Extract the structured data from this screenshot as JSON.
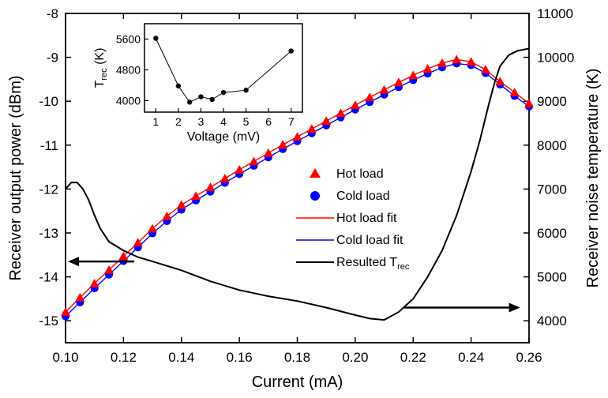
{
  "chart_data": [
    {
      "type": "line",
      "xlabel": "Current (mA)",
      "ylabel": "Receiver output power (dBm)",
      "y2label": "Receiver noise temperature (K)",
      "xlim": [
        0.1,
        0.26
      ],
      "ylim": [
        -15.5,
        -8
      ],
      "y2lim": [
        3500,
        11000
      ],
      "xticks": [
        "0.10",
        "0.12",
        "0.14",
        "0.16",
        "0.18",
        "0.20",
        "0.22",
        "0.24",
        "0.26"
      ],
      "yticks": [
        "-15",
        "-14",
        "-13",
        "-12",
        "-11",
        "-10",
        "-9",
        "-8"
      ],
      "y2ticks": [
        "4000",
        "5000",
        "6000",
        "7000",
        "8000",
        "9000",
        "10000",
        "11000"
      ],
      "legend_position": "center-right",
      "series": [
        {
          "name": "Hot load",
          "marker": "triangle",
          "color": "#ff0000",
          "axis": "left",
          "x": [
            0.1,
            0.105,
            0.11,
            0.115,
            0.12,
            0.125,
            0.13,
            0.135,
            0.14,
            0.145,
            0.15,
            0.155,
            0.16,
            0.165,
            0.17,
            0.175,
            0.18,
            0.185,
            0.19,
            0.195,
            0.2,
            0.205,
            0.21,
            0.215,
            0.22,
            0.225,
            0.23,
            0.235,
            0.24,
            0.245,
            0.25,
            0.255,
            0.26
          ],
          "y": [
            -14.8,
            -14.47,
            -14.15,
            -13.84,
            -13.53,
            -13.22,
            -12.9,
            -12.62,
            -12.36,
            -12.16,
            -11.96,
            -11.76,
            -11.56,
            -11.37,
            -11.18,
            -10.99,
            -10.81,
            -10.63,
            -10.45,
            -10.27,
            -10.09,
            -9.91,
            -9.74,
            -9.57,
            -9.41,
            -9.26,
            -9.13,
            -9.05,
            -9.1,
            -9.28,
            -9.55,
            -9.8,
            -10.05
          ]
        },
        {
          "name": "Cold load",
          "marker": "circle",
          "color": "#0000ff",
          "axis": "left",
          "x": [
            0.1,
            0.105,
            0.11,
            0.115,
            0.12,
            0.125,
            0.13,
            0.135,
            0.14,
            0.145,
            0.15,
            0.155,
            0.16,
            0.165,
            0.17,
            0.175,
            0.18,
            0.185,
            0.19,
            0.195,
            0.2,
            0.205,
            0.21,
            0.215,
            0.22,
            0.225,
            0.23,
            0.235,
            0.24,
            0.245,
            0.25,
            0.255,
            0.26
          ],
          "y": [
            -14.9,
            -14.58,
            -14.26,
            -13.95,
            -13.64,
            -13.33,
            -13.01,
            -12.73,
            -12.47,
            -12.26,
            -12.06,
            -11.86,
            -11.66,
            -11.47,
            -11.28,
            -11.09,
            -10.91,
            -10.73,
            -10.55,
            -10.37,
            -10.19,
            -10.02,
            -9.85,
            -9.68,
            -9.52,
            -9.37,
            -9.23,
            -9.14,
            -9.18,
            -9.36,
            -9.62,
            -9.88,
            -10.12
          ]
        },
        {
          "name": "Hot load fit",
          "style": "line",
          "color": "#ff0000",
          "axis": "left",
          "fit_of": "Hot load"
        },
        {
          "name": "Cold load fit",
          "style": "line",
          "color": "#0000ff",
          "axis": "left",
          "fit_of": "Cold load"
        },
        {
          "name": "Resulted T",
          "name_subscript": "rec",
          "style": "line",
          "color": "#000000",
          "axis": "right",
          "x": [
            0.1,
            0.102,
            0.104,
            0.106,
            0.108,
            0.11,
            0.112,
            0.115,
            0.12,
            0.125,
            0.13,
            0.14,
            0.15,
            0.16,
            0.17,
            0.18,
            0.19,
            0.2,
            0.205,
            0.21,
            0.215,
            0.22,
            0.225,
            0.23,
            0.235,
            0.24,
            0.243,
            0.246,
            0.248,
            0.25,
            0.253,
            0.256,
            0.26
          ],
          "y": [
            7000,
            7150,
            7150,
            7000,
            6750,
            6400,
            6100,
            5800,
            5600,
            5450,
            5350,
            5150,
            4900,
            4700,
            4560,
            4450,
            4300,
            4130,
            4050,
            4020,
            4200,
            4500,
            5000,
            5600,
            6400,
            7400,
            8100,
            8900,
            9400,
            9800,
            10050,
            10150,
            10200
          ]
        }
      ],
      "annotations": [
        {
          "type": "arrow",
          "direction": "left",
          "points_to_axis": "left",
          "x_data": 0.115,
          "y_data": -13.65
        },
        {
          "type": "arrow",
          "direction": "right",
          "points_to_axis": "right",
          "x_data": 0.225,
          "y_data": -14.7
        }
      ]
    },
    {
      "type": "line",
      "inset": true,
      "xlabel": "Voltage (mV)",
      "ylabel": "T",
      "ylabel_subscript": "rec",
      "ylabel_unit": " (K)",
      "xlim": [
        0.5,
        7.5
      ],
      "ylim": [
        3700,
        6000
      ],
      "xticks": [
        "1",
        "2",
        "3",
        "4",
        "5",
        "6",
        "7"
      ],
      "yticks": [
        "4000",
        "4800",
        "5600"
      ],
      "series": [
        {
          "marker": "circle",
          "color": "#000000",
          "x": [
            1.0,
            2.0,
            2.5,
            3.0,
            3.5,
            4.0,
            5.0,
            7.0
          ],
          "y": [
            5620,
            4380,
            3960,
            4100,
            4030,
            4210,
            4270,
            5290
          ]
        }
      ]
    }
  ]
}
